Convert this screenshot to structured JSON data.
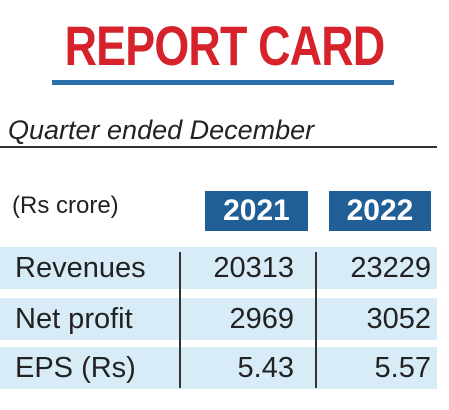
{
  "title": "REPORT CARD",
  "subtitle": "Quarter ended December",
  "unit": "(Rs crore)",
  "columns": [
    "2021",
    "2022"
  ],
  "rows": [
    {
      "label": "Revenues",
      "values": [
        "20313",
        "23229"
      ]
    },
    {
      "label": "Net profit",
      "values": [
        "2969",
        "3052"
      ]
    },
    {
      "label": "EPS (Rs)",
      "values": [
        "5.43",
        "5.57"
      ]
    }
  ],
  "colors": {
    "title": "#d6222b",
    "title_rule": "#2a6fa8",
    "subtitle_rule": "#333333",
    "year_badge": "#1f5f95",
    "row_band": "#d8ecf8",
    "text": "#222222"
  },
  "chart_data": {
    "type": "table",
    "title": "REPORT CARD",
    "subtitle": "Quarter ended December",
    "unit": "(Rs crore)",
    "columns": [
      "2021",
      "2022"
    ],
    "rows": [
      {
        "label": "Revenues",
        "values": [
          20313,
          23229
        ]
      },
      {
        "label": "Net profit",
        "values": [
          2969,
          3052
        ]
      },
      {
        "label": "EPS (Rs)",
        "values": [
          5.43,
          5.57
        ]
      }
    ]
  }
}
